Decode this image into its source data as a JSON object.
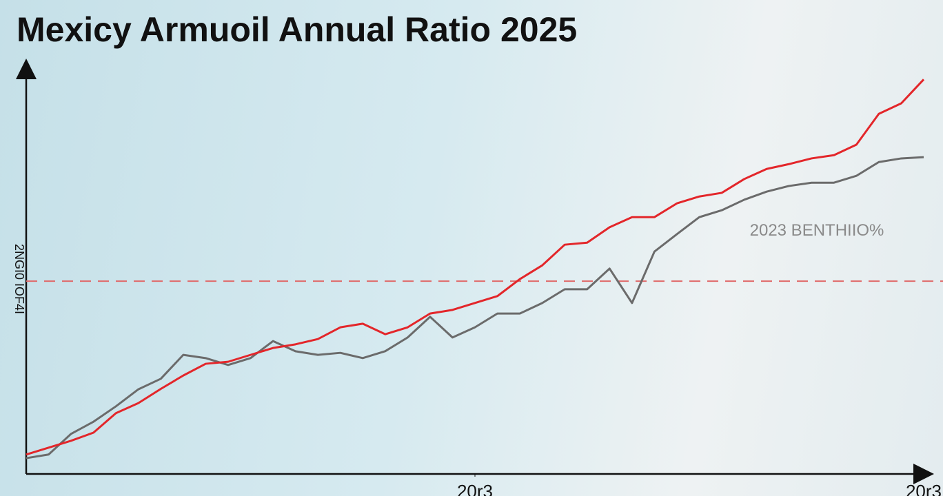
{
  "chart_data": {
    "type": "line",
    "title": "Mexicy Armuoil Annual Ratio 2025",
    "y_label": "2NGI0 IOF4I",
    "annotation": "2023 BENTHIIO%",
    "x": [
      0,
      1,
      2,
      3,
      4,
      5,
      6,
      7,
      8,
      9,
      10,
      11,
      12,
      13,
      14,
      15,
      16,
      17,
      18,
      19,
      20,
      21,
      22,
      23,
      24,
      25,
      26,
      27,
      28,
      29,
      30,
      31,
      32,
      33,
      34,
      35,
      36,
      37,
      38,
      39,
      40
    ],
    "xlim": [
      0,
      40
    ],
    "xticks": [
      {
        "value": 20,
        "label": "20r3"
      },
      {
        "value": 40,
        "label": "20r3"
      }
    ],
    "ylim": [
      0,
      100
    ],
    "reference_line": {
      "value": 47.6,
      "color": "#e06a6a"
    },
    "series": [
      {
        "color": "#e3262a",
        "values": [
          4.8,
          6.5,
          8.2,
          10.2,
          15,
          17.5,
          21,
          24.3,
          27.2,
          27.7,
          29.4,
          31.1,
          32,
          33.3,
          36.2,
          37.1,
          34.5,
          36.2,
          39.6,
          40.5,
          42.2,
          43.9,
          48.1,
          51.5,
          56.6,
          57.1,
          60.9,
          63.4,
          63.4,
          66.8,
          68.5,
          69.4,
          72.8,
          75.3,
          76.5,
          77.9,
          78.7,
          81.3,
          88.9,
          91.5,
          97.4
        ]
      },
      {
        "color": "#6b6b6b",
        "values": [
          3.9,
          4.8,
          9.9,
          12.9,
          16.7,
          20.9,
          23.5,
          29.4,
          28.6,
          26.9,
          28.6,
          32.8,
          30.3,
          29.4,
          29.9,
          28.6,
          30.3,
          33.7,
          38.8,
          33.7,
          36.2,
          39.6,
          39.6,
          42.2,
          45.6,
          45.6,
          50.7,
          42.2,
          54.9,
          59.2,
          63.4,
          65.1,
          67.7,
          69.7,
          71.1,
          71.9,
          71.9,
          73.6,
          77,
          77.9,
          78.2
        ]
      }
    ]
  }
}
